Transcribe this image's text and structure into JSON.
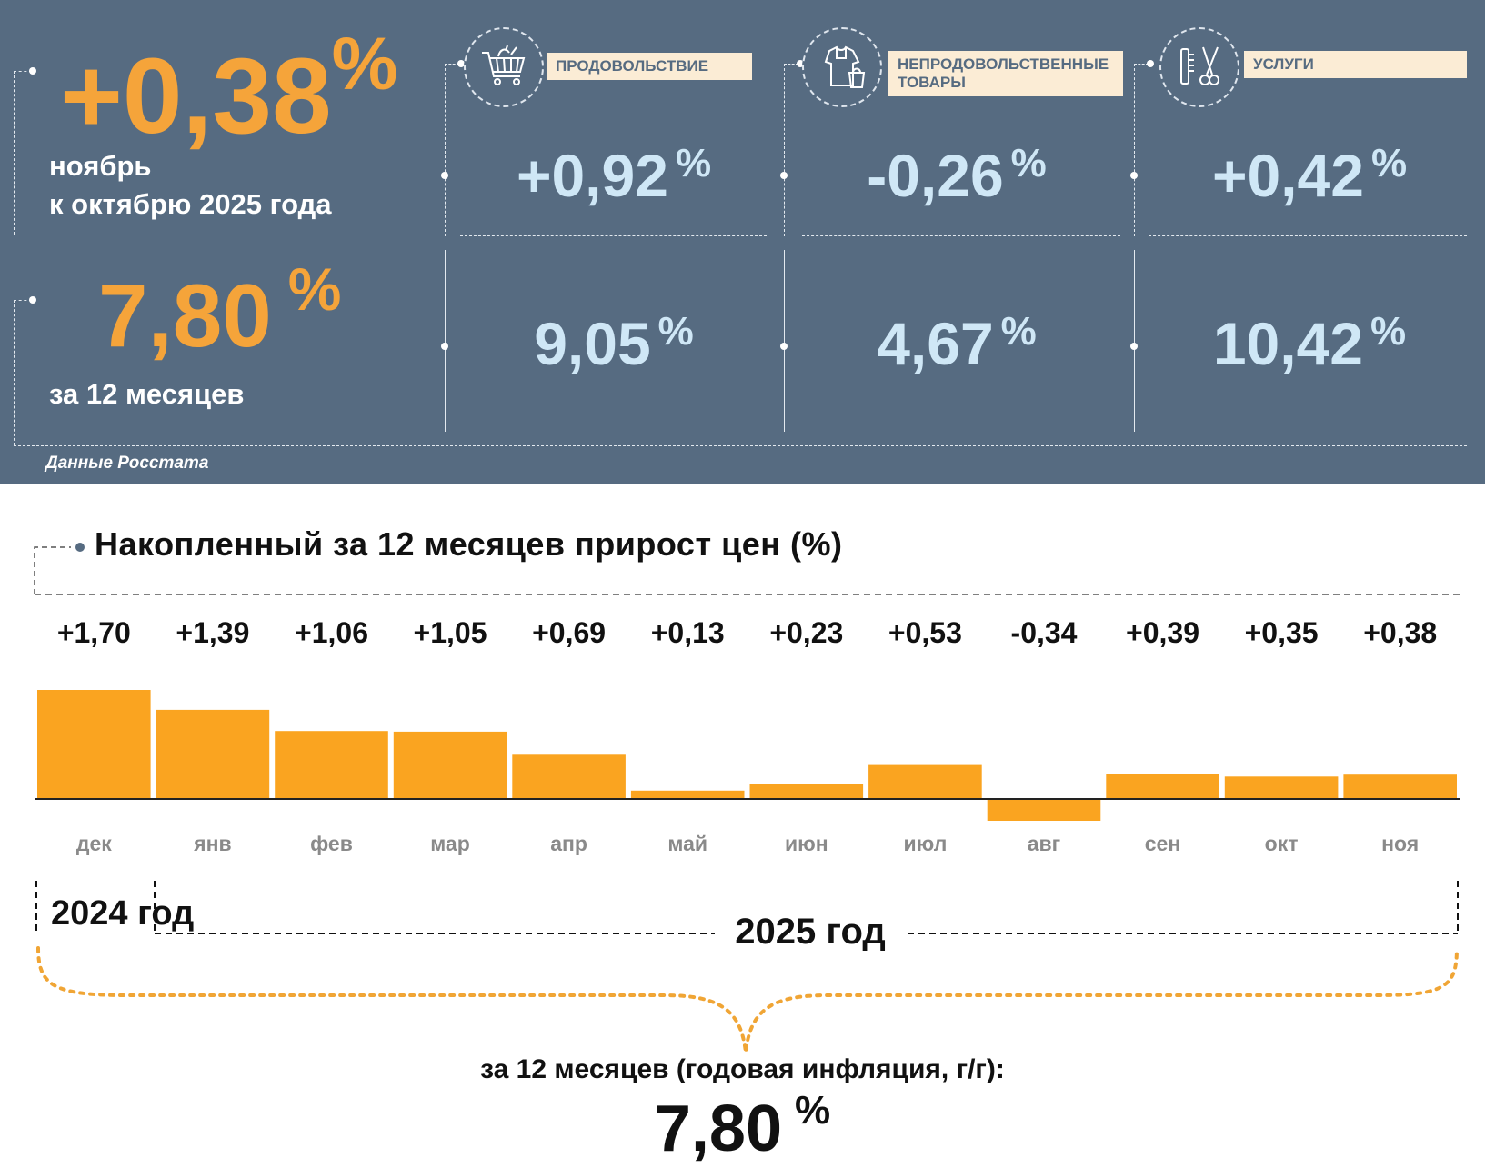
{
  "summary": {
    "monthly": {
      "value": "+0,38",
      "unit": "%",
      "label_line1": "ноябрь",
      "label_line2": "к октябрю 2025 года"
    },
    "annual": {
      "value": "7,80",
      "unit": "%",
      "label": "за 12 месяцев"
    },
    "source": "Данные Росстата"
  },
  "categories": [
    {
      "label": "ПРОДОВОЛЬСТВИЕ",
      "icon": "shopping-cart-icon",
      "monthly": "+0,92",
      "annual": "9,05",
      "unit": "%"
    },
    {
      "label_line1": "НЕПРОДОВОЛЬСТВЕННЫЕ",
      "label_line2": "ТОВАРЫ",
      "icon": "clothes-bag-icon",
      "monthly": "-0,26",
      "annual": "4,67",
      "unit": "%"
    },
    {
      "label": "УСЛУГИ",
      "icon": "comb-scissors-icon",
      "monthly": "+0,42",
      "annual": "10,42",
      "unit": "%"
    }
  ],
  "colors": {
    "panel": "#566b81",
    "accent_orange": "#f5a43a",
    "light_blue": "#cfe7f6",
    "bar": "#faa420",
    "label_bg": "#fbecd5"
  },
  "chart_data": {
    "type": "bar",
    "title": "Накопленный за 12 месяцев прирост цен (%)",
    "categories": [
      "дек",
      "янв",
      "фев",
      "мар",
      "апр",
      "май",
      "июн",
      "июл",
      "авг",
      "сен",
      "окт",
      "ноя"
    ],
    "values": [
      1.7,
      1.39,
      1.06,
      1.05,
      0.69,
      0.13,
      0.23,
      0.53,
      -0.34,
      0.39,
      0.35,
      0.38
    ],
    "value_labels": [
      "+1,70",
      "+1,39",
      "+1,06",
      "+1,05",
      "+0,69",
      "+0,13",
      "+0,23",
      "+0,53",
      "-0,34",
      "+0,39",
      "+0,35",
      "+0,38"
    ],
    "ylim": [
      -0.34,
      1.7
    ],
    "grid": false,
    "year_labels": {
      "y2024": "2024 год",
      "y2025": "2025 год"
    },
    "annual_caption": "за 12 месяцев (годовая инфляция, г/г):",
    "annual_value": "7,80",
    "annual_unit": "%"
  }
}
